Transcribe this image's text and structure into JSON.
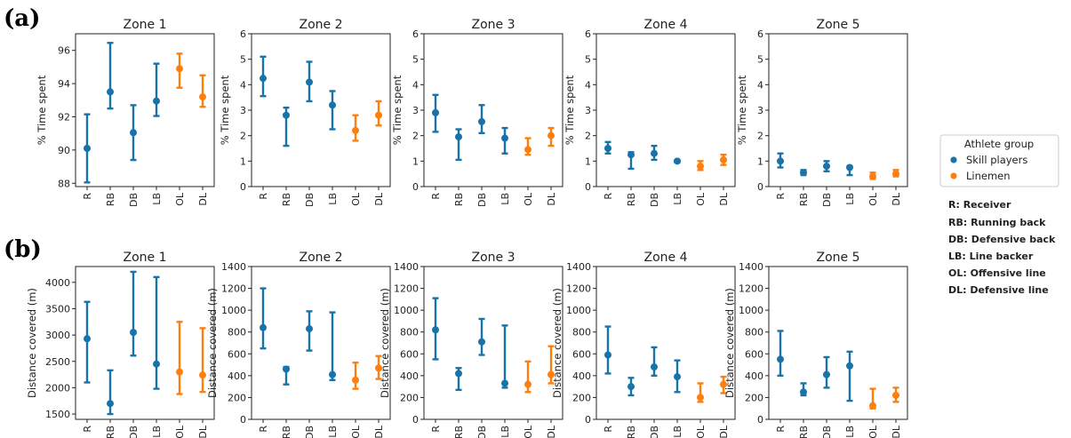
{
  "panel_labels": [
    "(a)",
    "(b)"
  ],
  "legend": {
    "title": "Athlete group",
    "entries": [
      {
        "label": "Skill players",
        "color": "#1f77b4"
      },
      {
        "label": "Linemen",
        "color": "#ff7f0e"
      }
    ]
  },
  "abbreviations": [
    "R: Receiver",
    "RB: Running back",
    "DB: Defensive back",
    "LB: Line backer",
    "OL: Offensive line",
    "DL: Defensive line"
  ],
  "colors": {
    "skill": "#1a73a8",
    "linemen": "#ff7f0e"
  },
  "chart_data": [
    {
      "type": "errorbar",
      "panel": "(a)",
      "title": "Zone 1",
      "ylabel": "% Time spent",
      "ylim": [
        87.8,
        97
      ],
      "yticks": [
        88,
        90,
        92,
        94,
        96
      ],
      "categories": [
        "R",
        "RB",
        "DB",
        "LB",
        "OL",
        "DL"
      ],
      "groups": [
        "Skill players",
        "Skill players",
        "Skill players",
        "Skill players",
        "Linemen",
        "Linemen"
      ],
      "values": [
        90.1,
        93.5,
        91.05,
        92.95,
        94.9,
        93.2
      ],
      "lower": [
        88.05,
        92.5,
        89.4,
        92.05,
        93.75,
        92.6
      ],
      "upper": [
        92.15,
        96.45,
        92.7,
        95.2,
        95.8,
        94.5
      ]
    },
    {
      "type": "errorbar",
      "panel": "(a)",
      "title": "Zone 2",
      "ylabel": "% Time spent",
      "ylim": [
        0,
        6
      ],
      "yticks": [
        0,
        1,
        2,
        3,
        4,
        5,
        6
      ],
      "categories": [
        "R",
        "RB",
        "DB",
        "LB",
        "OL",
        "DL"
      ],
      "groups": [
        "Skill players",
        "Skill players",
        "Skill players",
        "Skill players",
        "Linemen",
        "Linemen"
      ],
      "values": [
        4.25,
        2.8,
        4.1,
        3.2,
        2.2,
        2.8
      ],
      "lower": [
        3.55,
        1.6,
        3.35,
        2.25,
        1.8,
        2.4
      ],
      "upper": [
        5.1,
        3.1,
        4.9,
        3.75,
        2.8,
        3.35
      ]
    },
    {
      "type": "errorbar",
      "panel": "(a)",
      "title": "Zone 3",
      "ylabel": "% Time spent",
      "ylim": [
        0,
        6
      ],
      "yticks": [
        0,
        1,
        2,
        3,
        4,
        5,
        6
      ],
      "categories": [
        "R",
        "RB",
        "DB",
        "LB",
        "OL",
        "DL"
      ],
      "groups": [
        "Skill players",
        "Skill players",
        "Skill players",
        "Skill players",
        "Linemen",
        "Linemen"
      ],
      "values": [
        2.9,
        1.95,
        2.55,
        1.9,
        1.45,
        2.0
      ],
      "lower": [
        2.15,
        1.05,
        2.1,
        1.3,
        1.25,
        1.6
      ],
      "upper": [
        3.6,
        2.25,
        3.2,
        2.3,
        1.9,
        2.3
      ]
    },
    {
      "type": "errorbar",
      "panel": "(a)",
      "title": "Zone 4",
      "ylabel": "% Time spent",
      "ylim": [
        0,
        6
      ],
      "yticks": [
        0,
        1,
        2,
        3,
        4,
        5,
        6
      ],
      "categories": [
        "R",
        "RB",
        "DB",
        "LB",
        "OL",
        "DL"
      ],
      "groups": [
        "Skill players",
        "Skill players",
        "Skill players",
        "Skill players",
        "Linemen",
        "Linemen"
      ],
      "values": [
        1.5,
        1.25,
        1.3,
        1.0,
        0.8,
        1.05
      ],
      "lower": [
        1.3,
        0.7,
        1.05,
        0.95,
        0.65,
        0.85
      ],
      "upper": [
        1.75,
        1.35,
        1.6,
        1.05,
        1.0,
        1.25
      ]
    },
    {
      "type": "errorbar",
      "panel": "(a)",
      "title": "Zone 5",
      "ylabel": "% Time spent",
      "ylim": [
        0,
        6
      ],
      "yticks": [
        0,
        1,
        2,
        3,
        4,
        5,
        6
      ],
      "categories": [
        "R",
        "RB",
        "DB",
        "LB",
        "OL",
        "DL"
      ],
      "groups": [
        "Skill players",
        "Skill players",
        "Skill players",
        "Skill players",
        "Linemen",
        "Linemen"
      ],
      "values": [
        1.0,
        0.55,
        0.8,
        0.75,
        0.4,
        0.5
      ],
      "lower": [
        0.75,
        0.45,
        0.6,
        0.45,
        0.3,
        0.4
      ],
      "upper": [
        1.3,
        0.65,
        1.0,
        0.8,
        0.55,
        0.65
      ]
    },
    {
      "type": "errorbar",
      "panel": "(b)",
      "title": "Zone 1",
      "ylabel": "Distance covered (m)",
      "ylim": [
        1400,
        4300
      ],
      "yticks": [
        1500,
        2000,
        2500,
        3000,
        3500,
        4000
      ],
      "categories": [
        "R",
        "RB",
        "DB",
        "LB",
        "OL",
        "DL"
      ],
      "groups": [
        "Skill players",
        "Skill players",
        "Skill players",
        "Skill players",
        "Linemen",
        "Linemen"
      ],
      "values": [
        2930,
        1700,
        3050,
        2450,
        2300,
        2240
      ],
      "lower": [
        2100,
        1500,
        2610,
        1980,
        1880,
        1920
      ],
      "upper": [
        3630,
        2330,
        4200,
        4100,
        3250,
        3130
      ]
    },
    {
      "type": "errorbar",
      "panel": "(b)",
      "title": "Zone 2",
      "ylabel": "Distance covered (m)",
      "ylim": [
        0,
        1400
      ],
      "yticks": [
        0,
        200,
        400,
        600,
        800,
        1000,
        1200,
        1400
      ],
      "categories": [
        "R",
        "RB",
        "DB",
        "LB",
        "OL",
        "DL"
      ],
      "groups": [
        "Skill players",
        "Skill players",
        "Skill players",
        "Skill players",
        "Linemen",
        "Linemen"
      ],
      "values": [
        840,
        460,
        830,
        410,
        360,
        470
      ],
      "lower": [
        650,
        320,
        630,
        360,
        280,
        370
      ],
      "upper": [
        1200,
        480,
        990,
        980,
        520,
        580
      ]
    },
    {
      "type": "errorbar",
      "panel": "(b)",
      "title": "Zone 3",
      "ylabel": "Distance covered (m)",
      "ylim": [
        0,
        1400
      ],
      "yticks": [
        0,
        200,
        400,
        600,
        800,
        1000,
        1200,
        1400
      ],
      "categories": [
        "R",
        "RB",
        "DB",
        "LB",
        "OL",
        "DL"
      ],
      "groups": [
        "Skill players",
        "Skill players",
        "Skill players",
        "Skill players",
        "Linemen",
        "Linemen"
      ],
      "values": [
        820,
        420,
        710,
        330,
        320,
        410
      ],
      "lower": [
        550,
        270,
        590,
        290,
        250,
        330
      ],
      "upper": [
        1110,
        470,
        920,
        860,
        530,
        670
      ]
    },
    {
      "type": "errorbar",
      "panel": "(b)",
      "title": "Zone 4",
      "ylabel": "Distance covered (m)",
      "ylim": [
        0,
        1400
      ],
      "yticks": [
        0,
        200,
        400,
        600,
        800,
        1000,
        1200,
        1400
      ],
      "categories": [
        "R",
        "RB",
        "DB",
        "LB",
        "OL",
        "DL"
      ],
      "groups": [
        "Skill players",
        "Skill players",
        "Skill players",
        "Skill players",
        "Linemen",
        "Linemen"
      ],
      "values": [
        590,
        300,
        480,
        390,
        200,
        320
      ],
      "lower": [
        420,
        220,
        400,
        250,
        160,
        240
      ],
      "upper": [
        850,
        380,
        660,
        540,
        330,
        390
      ]
    },
    {
      "type": "errorbar",
      "panel": "(b)",
      "title": "Zone 5",
      "ylabel": "Distance covered (m)",
      "ylim": [
        0,
        1400
      ],
      "yticks": [
        0,
        200,
        400,
        600,
        800,
        1000,
        1200,
        1400
      ],
      "categories": [
        "R",
        "RB",
        "DB",
        "LB",
        "OL",
        "DL"
      ],
      "groups": [
        "Skill players",
        "Skill players",
        "Skill players",
        "Skill players",
        "Linemen",
        "Linemen"
      ],
      "values": [
        550,
        250,
        410,
        490,
        125,
        220
      ],
      "lower": [
        400,
        220,
        290,
        170,
        100,
        160
      ],
      "upper": [
        810,
        330,
        570,
        620,
        280,
        290
      ]
    }
  ]
}
